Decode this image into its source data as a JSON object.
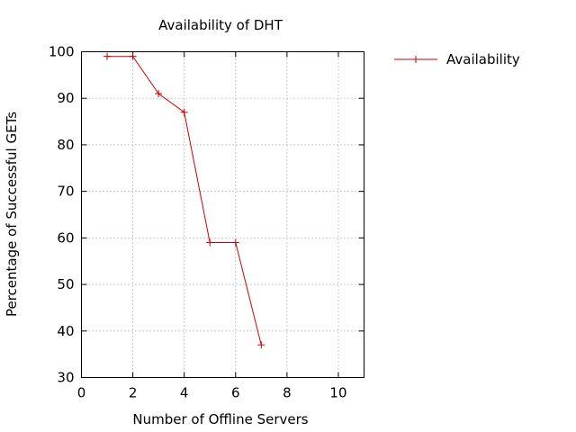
{
  "chart_data": {
    "type": "line",
    "title": "Availability of DHT",
    "xlabel": "Number of Offline Servers",
    "ylabel": "Percentage of Successful GETs",
    "xlim": [
      0,
      11
    ],
    "ylim": [
      30,
      100
    ],
    "xticks": [
      0,
      2,
      4,
      6,
      8,
      10
    ],
    "yticks": [
      30,
      40,
      50,
      60,
      70,
      80,
      90,
      100
    ],
    "grid": true,
    "legend_position": "outside-top-right",
    "series": [
      {
        "name": "Availability",
        "color": "#cc0000",
        "marker": "plus",
        "x": [
          1,
          2,
          3,
          4,
          5,
          6,
          7
        ],
        "y": [
          99,
          99,
          91,
          87,
          59,
          59,
          37
        ]
      }
    ]
  }
}
